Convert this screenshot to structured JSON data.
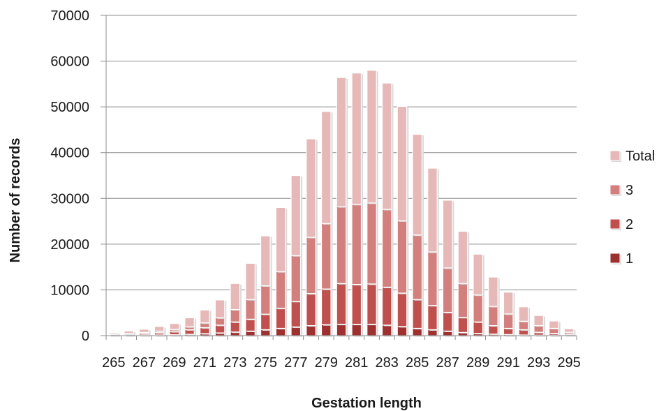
{
  "chart_data": {
    "type": "bar",
    "stacked": true,
    "title": "",
    "xlabel": "Gestation length",
    "ylabel": "Number of records",
    "ylim": [
      0,
      70000
    ],
    "yticks": [
      "0",
      "10000",
      "20000",
      "30000",
      "40000",
      "50000",
      "60000",
      "70000"
    ],
    "grid": true,
    "legend_position": "right",
    "categories": [
      "265",
      "266",
      "267",
      "268",
      "269",
      "270",
      "271",
      "272",
      "273",
      "274",
      "275",
      "276",
      "277",
      "278",
      "279",
      "280",
      "281",
      "282",
      "283",
      "284",
      "285",
      "286",
      "287",
      "288",
      "289",
      "290",
      "291",
      "292",
      "293",
      "294",
      "295"
    ],
    "xtick_labels": [
      "265",
      "267",
      "269",
      "271",
      "273",
      "275",
      "277",
      "279",
      "281",
      "283",
      "285",
      "287",
      "289",
      "291",
      "293",
      "295"
    ],
    "series": [
      {
        "name": "1",
        "color": "#9e3030",
        "values": [
          50,
          70,
          100,
          150,
          200,
          300,
          450,
          600,
          800,
          1000,
          1300,
          1600,
          1900,
          2200,
          2400,
          2500,
          2500,
          2500,
          2300,
          2000,
          1600,
          1300,
          1000,
          700,
          500,
          350,
          250,
          150,
          100,
          70,
          40
        ]
      },
      {
        "name": "2",
        "color": "#c0504d",
        "values": [
          150,
          230,
          350,
          500,
          700,
          1000,
          1300,
          1700,
          2200,
          2600,
          3400,
          4400,
          5600,
          7000,
          7800,
          8900,
          8700,
          8800,
          8300,
          7300,
          6300,
          5300,
          4100,
          3300,
          2500,
          1850,
          1350,
          1150,
          650,
          430,
          260
        ]
      },
      {
        "name": "3",
        "color": "#d27f7d",
        "values": [
          100,
          200,
          250,
          350,
          450,
          650,
          1050,
          1600,
          2700,
          4300,
          6200,
          8000,
          10000,
          12300,
          14300,
          16800,
          17500,
          17700,
          17000,
          15800,
          14100,
          11700,
          9700,
          7400,
          5900,
          4200,
          3150,
          1850,
          1450,
          1100,
          450
        ]
      },
      {
        "name": "Total",
        "color": "#e6b9b8",
        "values": [
          300,
          500,
          700,
          1000,
          1300,
          1950,
          2800,
          3900,
          5700,
          7900,
          10900,
          14000,
          17500,
          21500,
          24500,
          28200,
          28700,
          29000,
          27600,
          25000,
          22000,
          18300,
          14800,
          11400,
          8900,
          6400,
          4750,
          3150,
          2200,
          1600,
          750
        ]
      }
    ]
  }
}
